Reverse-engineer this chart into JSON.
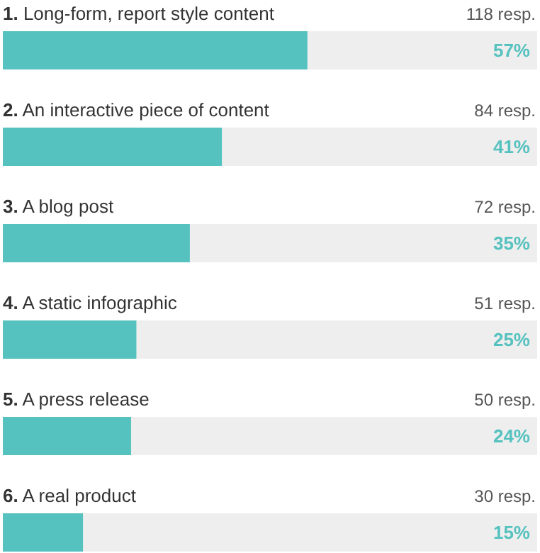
{
  "chart_data": {
    "type": "bar",
    "orientation": "horizontal",
    "categories": [
      "1. Long-form, report style content",
      "2. An interactive piece of content",
      "3. A blog post",
      "4. A static infographic",
      "5. A press release",
      "6. A real product"
    ],
    "values": [
      57,
      41,
      35,
      25,
      24,
      15
    ],
    "value_labels": [
      "57%",
      "41%",
      "35%",
      "25%",
      "24%",
      "15%"
    ],
    "color": "#56c2bf",
    "xlim": [
      0,
      100
    ],
    "tick_labels": "y",
    "annotations": [
      "118 resp.",
      "84 resp.",
      "72 resp.",
      "51 resp.",
      "50 resp.",
      "30 resp."
    ]
  }
}
